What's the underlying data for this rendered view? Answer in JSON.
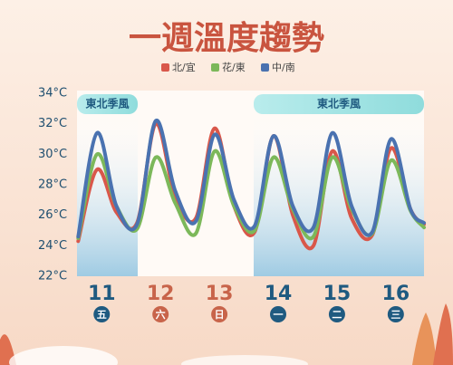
{
  "chart_data": {
    "type": "line",
    "title": "一週溫度趨勢",
    "x": [
      10.6,
      10.92,
      11.25,
      11.6,
      11.92,
      12.25,
      12.6,
      12.92,
      13.25,
      13.6,
      13.92,
      14.25,
      14.6,
      14.92,
      15.25,
      15.6,
      15.92,
      16.25,
      16.48
    ],
    "xlim": [
      10.58,
      16.48
    ],
    "xticks": [
      11,
      12,
      13,
      14,
      15,
      16
    ],
    "xtick_colors": [
      "#1f5a80",
      "#c8644a",
      "#c8644a",
      "#1f5a80",
      "#1f5a80",
      "#1f5a80"
    ],
    "weekdays": [
      "五",
      "六",
      "日",
      "一",
      "二",
      "三"
    ],
    "ylim": [
      22,
      34
    ],
    "yticks": [
      {
        "value": 22,
        "label": "22°C"
      },
      {
        "value": 24,
        "label": "24°C"
      },
      {
        "value": 26,
        "label": "26°C"
      },
      {
        "value": 28,
        "label": "28°C"
      },
      {
        "value": 30,
        "label": "30°C"
      },
      {
        "value": 32,
        "label": "32°C"
      },
      {
        "value": 34,
        "label": "34°C"
      }
    ],
    "annotations": [
      "東北季風",
      "東北季風"
    ],
    "series": [
      {
        "name": "北/宜",
        "color": "#d9574a",
        "values": [
          24.3,
          29.0,
          26.2,
          25.5,
          32.0,
          27.2,
          25.8,
          31.7,
          26.6,
          24.9,
          31.2,
          26.0,
          24.0,
          30.2,
          25.8,
          24.7,
          30.4,
          26.4,
          25.4
        ]
      },
      {
        "name": "花/東",
        "color": "#7cb85a",
        "values": [
          24.5,
          30.0,
          26.6,
          25.1,
          29.8,
          26.8,
          24.8,
          30.2,
          26.6,
          25.0,
          29.8,
          26.4,
          24.6,
          29.8,
          26.4,
          24.8,
          29.6,
          26.3,
          25.2
        ]
      },
      {
        "name": "中/南",
        "color": "#4a72b0",
        "values": [
          24.6,
          31.4,
          26.6,
          25.4,
          32.2,
          27.6,
          25.6,
          31.3,
          27.0,
          25.3,
          31.2,
          26.6,
          25.2,
          31.4,
          26.6,
          24.9,
          31.0,
          26.4,
          25.5
        ]
      }
    ]
  }
}
